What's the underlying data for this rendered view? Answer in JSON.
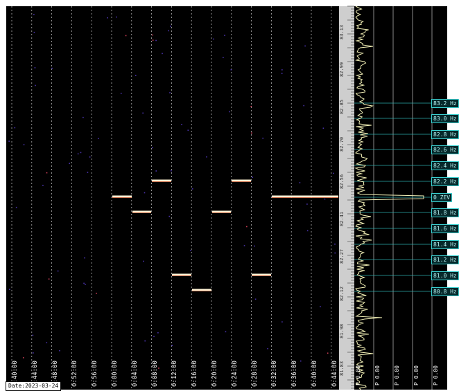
{
  "waterfall": {
    "time_ticks": [
      "0:40:00",
      "0:44:00",
      "0:48:00",
      "0:52:00",
      "0:56:00",
      "0:00:00",
      "0:04:00",
      "0:08:00",
      "0:12:00",
      "0:16:00",
      "0:20:00",
      "0:24:00",
      "0:28:00",
      "0:32:00",
      "0:36:00",
      "0:40:00",
      "0:44:00"
    ],
    "date_label": "Date:2023-03-24",
    "signal_color": "#fff3d6",
    "grid_color": "#ffffff"
  },
  "freq_scale": {
    "labels": [
      "83.13",
      "82.99",
      "82.85",
      "82.70",
      "82.56",
      "82.41",
      "82.27",
      "82.12",
      "81.98",
      "81.83"
    ]
  },
  "spectrum": {
    "freq_labels": [
      "83.2 Hz",
      "83.0 Hz",
      "82.8 Hz",
      "82.6 Hz",
      "82.4 Hz",
      "82.2 Hz",
      "0 ZEV",
      "81.8 Hz",
      "81.6 Hz",
      "81.4 Hz",
      "81.2 Hz",
      "81.0 Hz",
      "80.8 Hz"
    ],
    "amp_labels": [
      "P 0.00",
      "P 0.00",
      "P 0.00",
      "P 0.00",
      "P 0.00"
    ],
    "trace_color": "#f4f2b8",
    "line_color": "#2fb5b5"
  }
}
